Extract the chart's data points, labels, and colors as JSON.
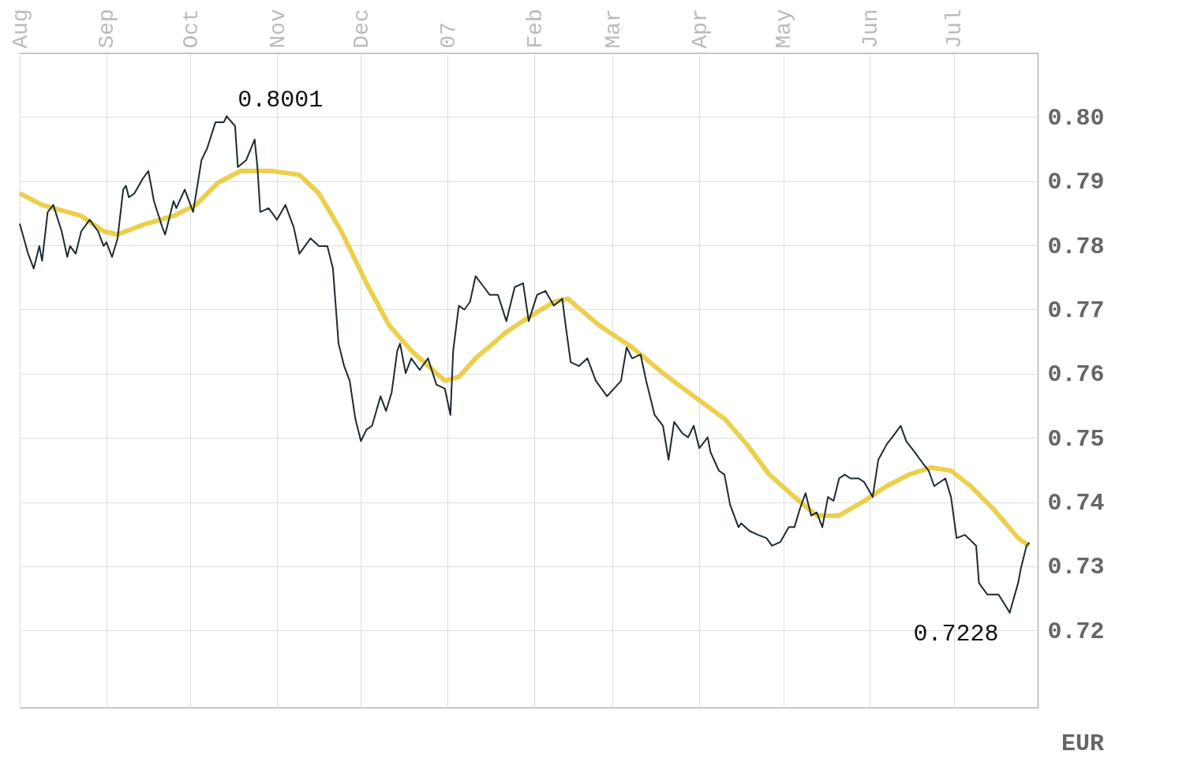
{
  "chart_data": {
    "type": "line",
    "ylabel": "EUR",
    "xlim": [
      "2006-08-01",
      "2007-07-31"
    ],
    "ylim": [
      0.708,
      0.81
    ],
    "xticks": [
      {
        "value": "2006-08-01",
        "label": "Aug"
      },
      {
        "value": "2006-09-01",
        "label": "Sep"
      },
      {
        "value": "2006-10-01",
        "label": "Oct"
      },
      {
        "value": "2006-11-01",
        "label": "Nov"
      },
      {
        "value": "2006-12-01",
        "label": "Dec"
      },
      {
        "value": "2007-01-01",
        "label": "07"
      },
      {
        "value": "2007-02-01",
        "label": "Feb"
      },
      {
        "value": "2007-03-01",
        "label": "Mar"
      },
      {
        "value": "2007-04-01",
        "label": "Apr"
      },
      {
        "value": "2007-05-01",
        "label": "May"
      },
      {
        "value": "2007-06-01",
        "label": "Jun"
      },
      {
        "value": "2007-07-01",
        "label": "Jul"
      }
    ],
    "yticks": [
      {
        "value": 0.72,
        "label": "0.72"
      },
      {
        "value": 0.73,
        "label": "0.73"
      },
      {
        "value": 0.74,
        "label": "0.74"
      },
      {
        "value": 0.75,
        "label": "0.75"
      },
      {
        "value": 0.76,
        "label": "0.76"
      },
      {
        "value": 0.77,
        "label": "0.77"
      },
      {
        "value": 0.78,
        "label": "0.78"
      },
      {
        "value": 0.79,
        "label": "0.79"
      },
      {
        "value": 0.8,
        "label": "0.80"
      }
    ],
    "grid": true,
    "marker": "none",
    "line_style": "solid",
    "annotations": [
      {
        "text": "0.8001",
        "x": "2006-10-14",
        "y": 0.8001
      },
      {
        "text": "0.7228",
        "x": "2007-07-21",
        "y": 0.7228
      }
    ],
    "series": [
      {
        "color": "#e8c830",
        "x": [
          "2006-08-01",
          "2006-08-09",
          "2006-08-23",
          "2006-08-31",
          "2006-09-05",
          "2006-09-14",
          "2006-09-25",
          "2006-10-03",
          "2006-10-11",
          "2006-10-19",
          "2006-10-30",
          "2006-11-09",
          "2006-11-16",
          "2006-11-24",
          "2006-12-03",
          "2006-12-11",
          "2006-12-19",
          "2006-12-31",
          "2007-01-05",
          "2007-01-11",
          "2007-01-22",
          "2007-01-30",
          "2007-02-08",
          "2007-02-13",
          "2007-02-24",
          "2007-03-08",
          "2007-03-19",
          "2007-03-30",
          "2007-04-10",
          "2007-04-18",
          "2007-04-26",
          "2007-05-05",
          "2007-05-13",
          "2007-05-21",
          "2007-05-30",
          "2007-06-07",
          "2007-06-15",
          "2007-06-23",
          "2007-06-30",
          "2007-07-07",
          "2007-07-15",
          "2007-07-24",
          "2007-07-28"
        ],
        "values": [
          0.7881,
          0.7863,
          0.7846,
          0.7822,
          0.7817,
          0.7832,
          0.7846,
          0.7863,
          0.7898,
          0.7916,
          0.7916,
          0.791,
          0.7881,
          0.7822,
          0.7741,
          0.7676,
          0.7636,
          0.7589,
          0.7595,
          0.7624,
          0.7665,
          0.7688,
          0.7712,
          0.7717,
          0.7676,
          0.7641,
          0.7601,
          0.7565,
          0.753,
          0.749,
          0.7443,
          0.7408,
          0.7379,
          0.7379,
          0.7402,
          0.7425,
          0.7443,
          0.7454,
          0.7449,
          0.7425,
          0.739,
          0.7344,
          0.7332
        ]
      },
      {
        "color": "#1c2b33",
        "x": [
          "2006-08-01",
          "2006-08-04",
          "2006-08-06",
          "2006-08-08",
          "2006-08-09",
          "2006-08-11",
          "2006-08-13",
          "2006-08-16",
          "2006-08-18",
          "2006-08-19",
          "2006-08-21",
          "2006-08-23",
          "2006-08-26",
          "2006-08-29",
          "2006-08-31",
          "2006-09-01",
          "2006-09-03",
          "2006-09-05",
          "2006-09-07",
          "2006-09-08",
          "2006-09-09",
          "2006-09-11",
          "2006-09-14",
          "2006-09-16",
          "2006-09-18",
          "2006-09-21",
          "2006-09-22",
          "2006-09-25",
          "2006-09-26",
          "2006-09-29",
          "2006-10-02",
          "2006-10-05",
          "2006-10-07",
          "2006-10-10",
          "2006-10-13",
          "2006-10-14",
          "2006-10-17",
          "2006-10-18",
          "2006-10-21",
          "2006-10-24",
          "2006-10-25",
          "2006-10-26",
          "2006-10-29",
          "2006-11-01",
          "2006-11-04",
          "2006-11-07",
          "2006-11-09",
          "2006-11-13",
          "2006-11-16",
          "2006-11-19",
          "2006-11-21",
          "2006-11-23",
          "2006-11-25",
          "2006-11-27",
          "2006-11-29",
          "2006-12-01",
          "2006-12-03",
          "2006-12-05",
          "2006-12-08",
          "2006-12-10",
          "2006-12-12",
          "2006-12-14",
          "2006-12-15",
          "2006-12-17",
          "2006-12-19",
          "2006-12-22",
          "2006-12-25",
          "2006-12-28",
          "2006-12-31",
          "2007-01-02",
          "2007-01-03",
          "2007-01-05",
          "2007-01-07",
          "2007-01-09",
          "2007-01-11",
          "2007-01-14",
          "2007-01-16",
          "2007-01-19",
          "2007-01-22",
          "2007-01-25",
          "2007-01-28",
          "2007-01-30",
          "2007-02-02",
          "2007-02-05",
          "2007-02-08",
          "2007-02-11",
          "2007-02-12",
          "2007-02-14",
          "2007-02-17",
          "2007-02-20",
          "2007-02-23",
          "2007-02-27",
          "2007-03-04",
          "2007-03-06",
          "2007-03-08",
          "2007-03-11",
          "2007-03-13",
          "2007-03-16",
          "2007-03-19",
          "2007-03-21",
          "2007-03-23",
          "2007-03-26",
          "2007-03-28",
          "2007-03-30",
          "2007-04-01",
          "2007-04-04",
          "2007-04-05",
          "2007-04-08",
          "2007-04-10",
          "2007-04-12",
          "2007-04-15",
          "2007-04-16",
          "2007-04-19",
          "2007-04-22",
          "2007-04-25",
          "2007-04-27",
          "2007-04-30",
          "2007-05-03",
          "2007-05-05",
          "2007-05-07",
          "2007-05-09",
          "2007-05-11",
          "2007-05-13",
          "2007-05-15",
          "2007-05-17",
          "2007-05-19",
          "2007-05-21",
          "2007-05-23",
          "2007-05-25",
          "2007-05-28",
          "2007-05-30",
          "2007-06-02",
          "2007-06-04",
          "2007-06-07",
          "2007-06-10",
          "2007-06-12",
          "2007-06-14",
          "2007-06-17",
          "2007-06-20",
          "2007-06-22",
          "2007-06-24",
          "2007-06-28",
          "2007-06-30",
          "2007-07-02",
          "2007-07-05",
          "2007-07-09",
          "2007-07-10",
          "2007-07-13",
          "2007-07-17",
          "2007-07-21",
          "2007-07-24",
          "2007-07-25",
          "2007-07-27",
          "2007-07-28"
        ],
        "values": [
          0.7834,
          0.7787,
          0.7764,
          0.7799,
          0.7776,
          0.7852,
          0.7863,
          0.7822,
          0.7782,
          0.7799,
          0.7787,
          0.7822,
          0.784,
          0.7822,
          0.7799,
          0.7805,
          0.7782,
          0.7811,
          0.7887,
          0.7893,
          0.7875,
          0.7881,
          0.7904,
          0.7916,
          0.7869,
          0.7828,
          0.7817,
          0.7869,
          0.7858,
          0.7887,
          0.7852,
          0.7933,
          0.7951,
          0.7992,
          0.7992,
          0.8001,
          0.7986,
          0.7922,
          0.7933,
          0.7965,
          0.7922,
          0.7852,
          0.7858,
          0.784,
          0.7863,
          0.7828,
          0.7787,
          0.7811,
          0.7799,
          0.7799,
          0.7764,
          0.7647,
          0.7612,
          0.7589,
          0.753,
          0.7495,
          0.7513,
          0.7519,
          0.7565,
          0.7542,
          0.7571,
          0.7636,
          0.7647,
          0.7601,
          0.7624,
          0.7606,
          0.7624,
          0.7583,
          0.7577,
          0.7536,
          0.7636,
          0.7706,
          0.77,
          0.7712,
          0.7752,
          0.7735,
          0.7723,
          0.7723,
          0.7682,
          0.7735,
          0.7741,
          0.7682,
          0.7723,
          0.7729,
          0.7706,
          0.7717,
          0.7682,
          0.7618,
          0.7612,
          0.7624,
          0.7589,
          0.7565,
          0.7589,
          0.7641,
          0.7624,
          0.763,
          0.7589,
          0.7536,
          0.7519,
          0.7466,
          0.7525,
          0.7507,
          0.7501,
          0.7519,
          0.7484,
          0.7501,
          0.7478,
          0.7449,
          0.7443,
          0.7396,
          0.7361,
          0.7367,
          0.7355,
          0.7349,
          0.7344,
          0.7332,
          0.7338,
          0.7361,
          0.7361,
          0.739,
          0.7414,
          0.7379,
          0.7384,
          0.7361,
          0.7408,
          0.7402,
          0.7437,
          0.7443,
          0.7437,
          0.7437,
          0.7431,
          0.7408,
          0.7466,
          0.749,
          0.7507,
          0.7519,
          0.7495,
          0.7478,
          0.746,
          0.7449,
          0.7425,
          0.7437,
          0.7408,
          0.7344,
          0.7349,
          0.7332,
          0.7274,
          0.7256,
          0.7256,
          0.7228,
          0.7274,
          0.7297,
          0.7332,
          0.7337
        ]
      }
    ]
  }
}
